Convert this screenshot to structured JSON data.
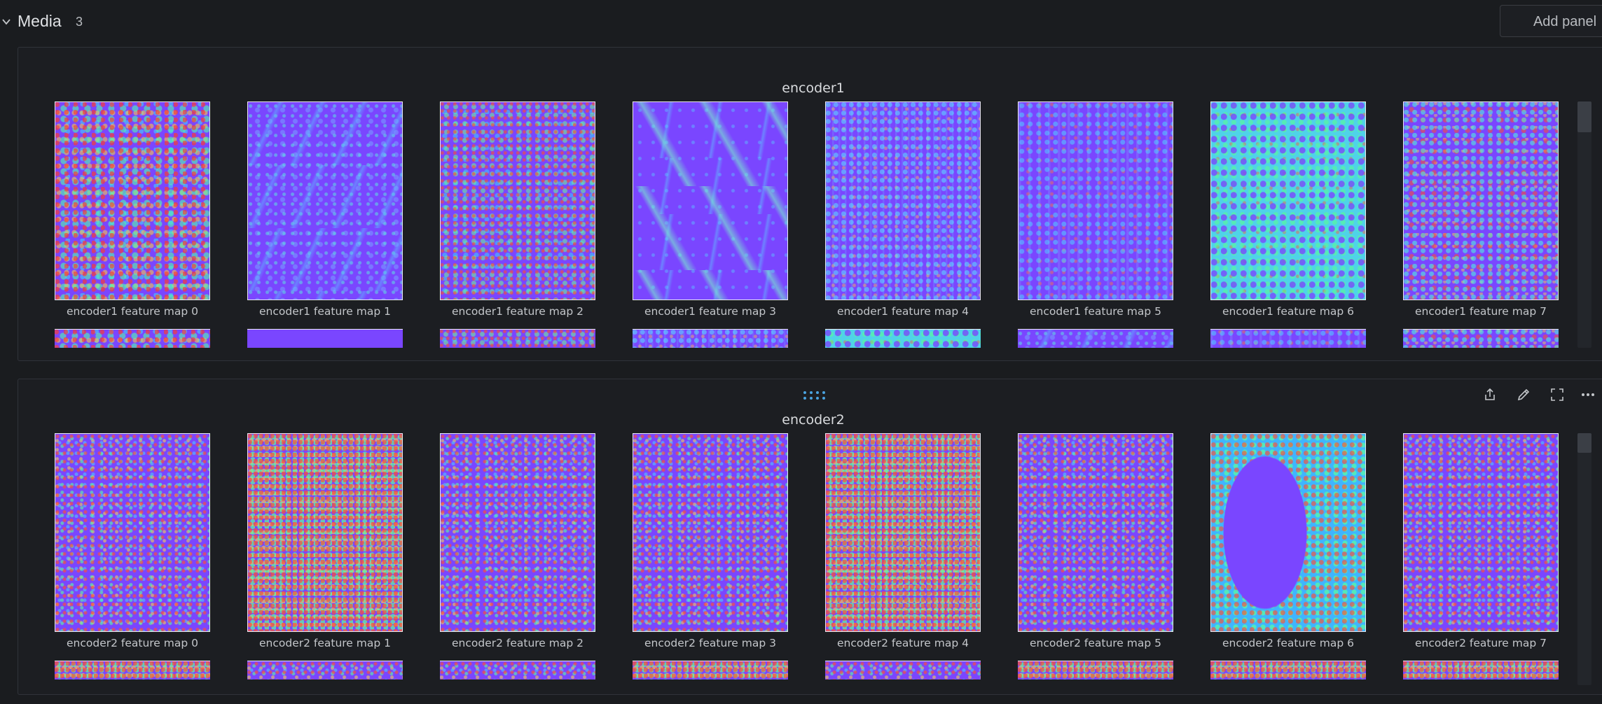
{
  "section": {
    "title": "Media",
    "count": "3",
    "add_panel_label": "Add panel"
  },
  "panels": [
    {
      "title": "encoder1",
      "captions": [
        "encoder1 feature map 0",
        "encoder1 feature map 1",
        "encoder1 feature map 2",
        "encoder1 feature map 3",
        "encoder1 feature map 4",
        "encoder1 feature map 5",
        "encoder1 feature map 6",
        "encoder1 feature map 7"
      ]
    },
    {
      "title": "encoder2",
      "captions": [
        "encoder2 feature map 0",
        "encoder2 feature map 1",
        "encoder2 feature map 2",
        "encoder2 feature map 3",
        "encoder2 feature map 4",
        "encoder2 feature map 5",
        "encoder2 feature map 6",
        "encoder2 feature map 7"
      ]
    }
  ],
  "icons": {
    "collapse": "chevron-down-icon",
    "drag": "drag-handle-icon",
    "share": "share-icon",
    "edit": "edit-icon",
    "fullscreen": "fullscreen-icon",
    "more": "more-icon"
  },
  "colors": {
    "background": "#1a1c1f",
    "panel_border": "#30333a",
    "feature_base": "#7a46ff",
    "accent": "#4aa3e0"
  }
}
